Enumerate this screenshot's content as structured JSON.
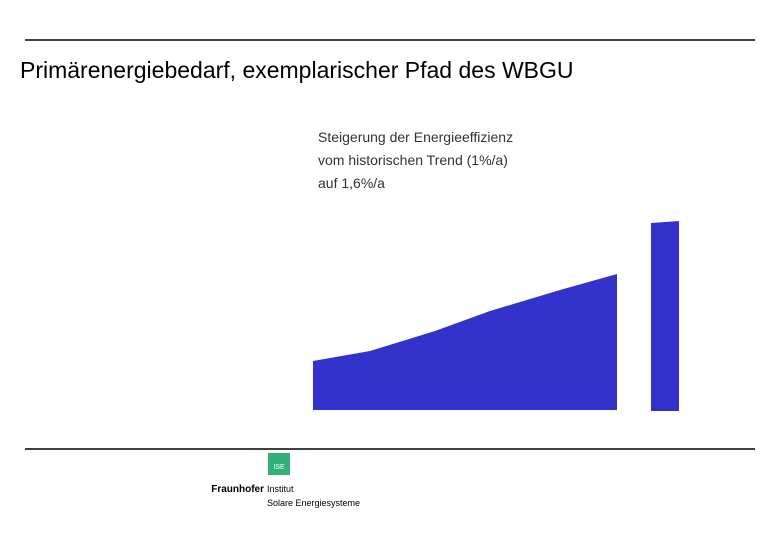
{
  "header": {
    "title": "Primärenergiebedarf, exemplarischer Pfad des WBGU"
  },
  "annotation": {
    "lines": [
      "Steigerung der Energieeffizienz",
      "vom historischen Trend (1%/a)",
      "auf 1,6%/a"
    ]
  },
  "logo": {
    "badge": "ISE",
    "name": "Fraunhofer",
    "lines": [
      "Institut",
      "Solare Energiesysteme"
    ]
  }
}
